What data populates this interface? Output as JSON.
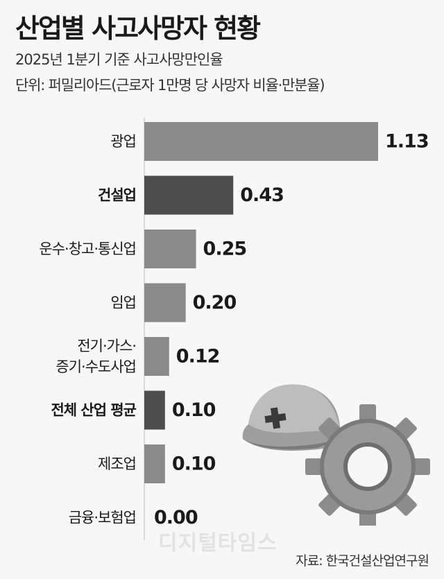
{
  "header": {
    "title": "산업별 사고사망자 현황",
    "subtitle": "2025년 1분기 기준 사고사망만인율",
    "unit": "단위: 퍼밀리아드(근로자 1만명 당 사망자 비율·만분율)"
  },
  "footer": {
    "source": "자료: 한국건설산업연구원",
    "watermark": "디지털타임스"
  },
  "colors": {
    "bar_default": "#8a8a8a",
    "bar_highlight": "#4d4d4d"
  },
  "chart_data": {
    "type": "bar",
    "orientation": "horizontal",
    "title": "산업별 사고사망자 현황",
    "subtitle": "2025년 1분기 기준 사고사망만인율",
    "categories": [
      [
        "광업"
      ],
      [
        "건설업"
      ],
      [
        "운수·창고·통신업"
      ],
      [
        "임업"
      ],
      [
        "전기·가스·",
        "증기·수도사업"
      ],
      [
        "전체 산업 평균"
      ],
      [
        "제조업"
      ],
      [
        "금융·보험업"
      ]
    ],
    "values": [
      1.13,
      0.43,
      0.25,
      0.2,
      0.12,
      0.1,
      0.1,
      0.0
    ],
    "value_labels": [
      "1.13",
      "0.43",
      "0.25",
      "0.20",
      "0.12",
      "0.10",
      "0.10",
      "0.00"
    ],
    "highlighted": [
      false,
      true,
      false,
      false,
      false,
      true,
      false,
      false
    ],
    "xlim": [
      0,
      1.13
    ],
    "grid": false,
    "legend": "none"
  }
}
